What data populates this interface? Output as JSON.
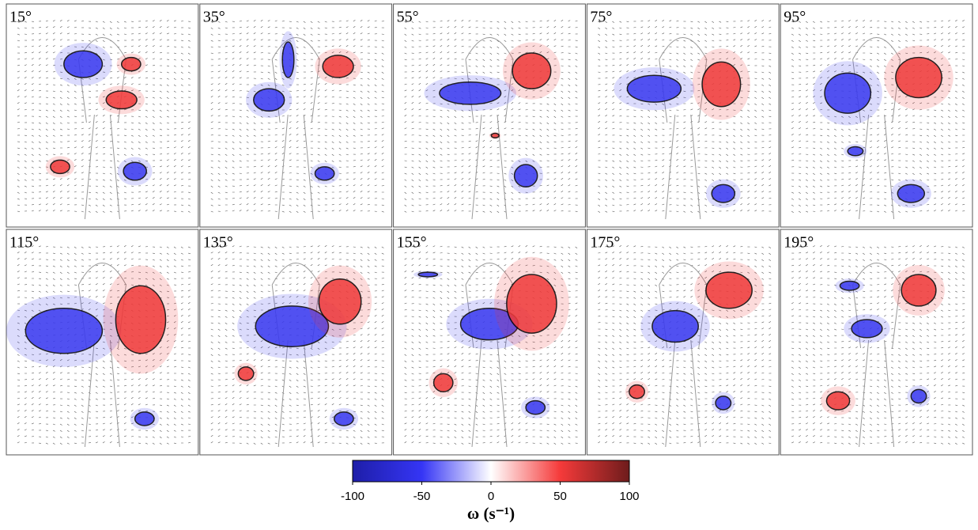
{
  "panels": [
    {
      "label": "15°"
    },
    {
      "label": "35°"
    },
    {
      "label": "55°"
    },
    {
      "label": "75°"
    },
    {
      "label": "95°"
    },
    {
      "label": "115°"
    },
    {
      "label": "135°"
    },
    {
      "label": "155°"
    },
    {
      "label": "175°"
    },
    {
      "label": "195°"
    }
  ],
  "colorbar": {
    "lim": [
      -100,
      100
    ],
    "ticks": [
      -100,
      -50,
      0,
      50,
      100
    ],
    "label": "ω (s⁻¹)",
    "colors": [
      "#1e1ea8",
      "#3535f5",
      "#ffffff",
      "#f53a3a",
      "#6e1c1c"
    ]
  }
}
